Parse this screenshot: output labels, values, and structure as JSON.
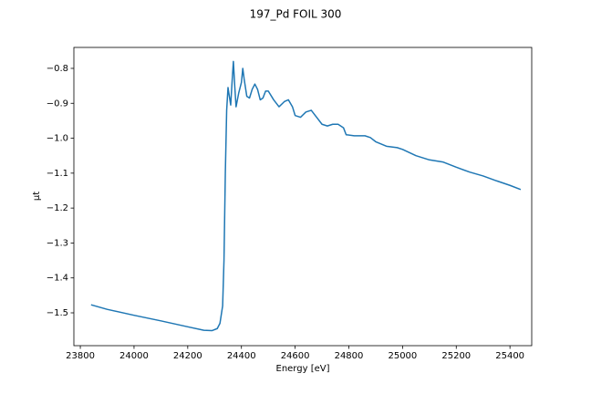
{
  "chart_data": {
    "type": "line",
    "title": "197_Pd FOIL 300",
    "xlabel": "Energy [eV]",
    "ylabel": "μt",
    "xlim": [
      23776,
      25481
    ],
    "ylim": [
      -1.594,
      -0.74
    ],
    "xticks": [
      23800,
      24000,
      24200,
      24400,
      24600,
      24800,
      25000,
      25200,
      25400
    ],
    "yticks": [
      {
        "value": -1.5,
        "label": "−1.5"
      },
      {
        "value": -1.4,
        "label": "−1.4"
      },
      {
        "value": -1.3,
        "label": "−1.3"
      },
      {
        "value": -1.2,
        "label": "−1.2"
      },
      {
        "value": -1.1,
        "label": "−1.1"
      },
      {
        "value": -1.0,
        "label": "−1.0"
      },
      {
        "value": -0.9,
        "label": "−0.9"
      },
      {
        "value": -0.8,
        "label": "−0.8"
      }
    ],
    "series": [
      {
        "color": "#1f77b4",
        "x": [
          23840,
          23900,
          24000,
          24100,
          24200,
          24260,
          24290,
          24310,
          24320,
          24330,
          24335,
          24340,
          24345,
          24350,
          24355,
          24360,
          24365,
          24370,
          24375,
          24380,
          24390,
          24400,
          24405,
          24410,
          24420,
          24430,
          24440,
          24450,
          24460,
          24470,
          24480,
          24490,
          24500,
          24520,
          24540,
          24560,
          24575,
          24590,
          24600,
          24620,
          24640,
          24660,
          24680,
          24700,
          24720,
          24740,
          24760,
          24780,
          24790,
          24820,
          24860,
          24880,
          24900,
          24940,
          24980,
          25000,
          25050,
          25100,
          25150,
          25200,
          25250,
          25300,
          25350,
          25400,
          25440
        ],
        "values": [
          -1.477,
          -1.49,
          -1.507,
          -1.523,
          -1.54,
          -1.55,
          -1.551,
          -1.545,
          -1.53,
          -1.48,
          -1.35,
          -1.1,
          -0.92,
          -0.855,
          -0.88,
          -0.905,
          -0.84,
          -0.78,
          -0.85,
          -0.91,
          -0.87,
          -0.84,
          -0.8,
          -0.83,
          -0.88,
          -0.885,
          -0.86,
          -0.845,
          -0.86,
          -0.89,
          -0.885,
          -0.865,
          -0.865,
          -0.89,
          -0.91,
          -0.895,
          -0.89,
          -0.91,
          -0.935,
          -0.94,
          -0.925,
          -0.92,
          -0.94,
          -0.96,
          -0.965,
          -0.96,
          -0.96,
          -0.97,
          -0.99,
          -0.993,
          -0.993,
          -0.998,
          -1.01,
          -1.023,
          -1.027,
          -1.032,
          -1.05,
          -1.062,
          -1.068,
          -1.083,
          -1.097,
          -1.108,
          -1.122,
          -1.135,
          -1.147
        ]
      }
    ]
  }
}
